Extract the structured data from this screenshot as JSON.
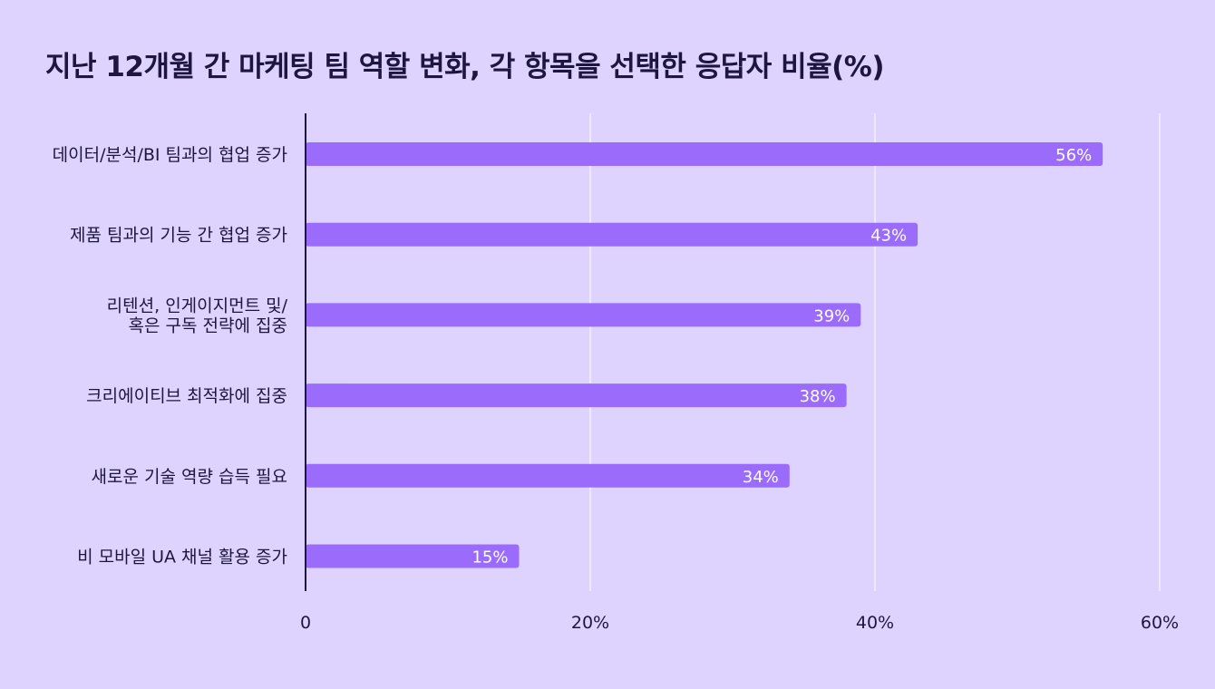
{
  "title": "지난 12개월 간 마케팅 팀 역할 변화, 각 항목을 선택한 응답자 비율(%)",
  "colors": {
    "background": "#ddd3fe",
    "bar": "#9b6cfb",
    "grid": "#ffffff",
    "axis": "#1e1640",
    "text": "#1e1640",
    "value_label": "#ffffff"
  },
  "chart_data": {
    "type": "bar",
    "orientation": "horizontal",
    "title": "지난 12개월 간 마케팅 팀 역할 변화, 각 항목을 선택한 응답자 비율(%)",
    "categories": [
      "데이터/분석/BI 팀과의 협업 증가",
      "제품 팀과의 기능 간 협업 증가",
      "리텐션, 인게이지먼트 및/ 혹은 구독 전략에 집중",
      "크리에이티브 최적화에 집중",
      "새로운 기술 역량 습득 필요",
      "비 모바일 UA 채널 활용 증가"
    ],
    "category_lines": [
      [
        "데이터/분석/BI 팀과의 협업 증가"
      ],
      [
        "제품 팀과의 기능 간 협업 증가"
      ],
      [
        "리텐션, 인게이지먼트 및/",
        "혹은 구독 전략에 집중"
      ],
      [
        "크리에이티브 최적화에 집중"
      ],
      [
        "새로운 기술 역량 습득 필요"
      ],
      [
        "비 모바일 UA 채널 활용 증가"
      ]
    ],
    "values": [
      56,
      43,
      39,
      38,
      34,
      15
    ],
    "value_labels": [
      "56%",
      "43%",
      "39%",
      "38%",
      "34%",
      "15%"
    ],
    "xlim": [
      0,
      60
    ],
    "x_ticks": [
      0,
      20,
      40,
      60
    ],
    "x_tick_labels": [
      "0",
      "20%",
      "40%",
      "60%"
    ],
    "xlabel": "",
    "ylabel": "",
    "grid": true,
    "legend": "none"
  }
}
